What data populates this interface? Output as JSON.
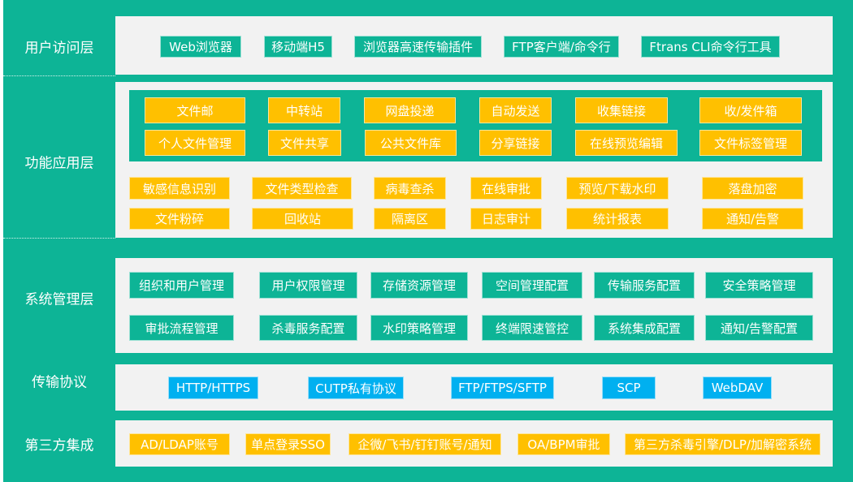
{
  "colors": {
    "teal": "#0DB496",
    "yellow": "#FFC000",
    "blue": "#00B0F0",
    "panel": "#F2F2F2"
  },
  "layers": [
    {
      "label": "用户访问层",
      "items": [
        "Web浏览器",
        "移动端H5",
        "浏览器高速传输插件",
        "FTP客户端/命令行",
        "Ftrans CLI命令行工具"
      ]
    },
    {
      "label": "功能应用层",
      "core_items": [
        "文件邮",
        "中转站",
        "网盘投递",
        "自动发送",
        "收集链接",
        "收/发件箱",
        "个人文件管理",
        "文件共享",
        "公共文件库",
        "分享链接",
        "在线预览编辑",
        "文件标签管理"
      ],
      "items": [
        "敏感信息识别",
        "文件类型检查",
        "病毒查杀",
        "在线审批",
        "预览/下载水印",
        "落盘加密",
        "文件粉碎",
        "回收站",
        "隔离区",
        "日志审计",
        "统计报表",
        "通知/告警"
      ]
    },
    {
      "label": "系统管理层",
      "items": [
        "组织和用户管理",
        "用户权限管理",
        "存储资源管理",
        "空间管理配置",
        "传输服务配置",
        "安全策略管理",
        "审批流程管理",
        "杀毒服务配置",
        "水印策略管理",
        "终端限速管控",
        "系统集成配置",
        "通知/告警配置"
      ]
    },
    {
      "label": "传输协议",
      "items": [
        "HTTP/HTTPS",
        "CUTP私有协议",
        "FTP/FTPS/SFTP",
        "SCP",
        "WebDAV"
      ]
    },
    {
      "label": "第三方集成",
      "items": [
        "AD/LDAP账号",
        "单点登录SSO",
        "企微/飞书/钉钉账号/通知",
        "OA/BPM审批",
        "第三方杀毒引擎/DLP/加解密系统"
      ]
    }
  ]
}
